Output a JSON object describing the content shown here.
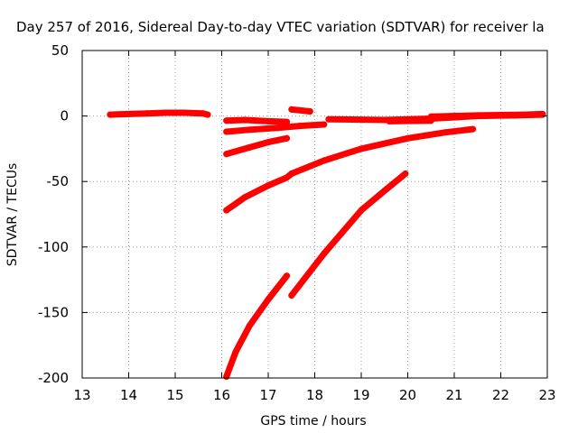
{
  "chart_data": {
    "type": "scatter",
    "title": "Day 257 of 2016, Sidereal Day-to-day VTEC variation (SDTVAR) for receiver la",
    "xlabel": "GPS time / hours",
    "ylabel": "SDTVAR / TECUs",
    "xlim": [
      13,
      23
    ],
    "ylim": [
      -200,
      50
    ],
    "xticks": [
      13,
      14,
      15,
      16,
      17,
      18,
      19,
      20,
      21,
      22,
      23
    ],
    "yticks": [
      50,
      0,
      -50,
      -100,
      -150,
      -200
    ],
    "grid": true,
    "marker_color": "#ff0000",
    "series": [
      {
        "x": [
          13.6,
          14.0,
          14.4,
          14.8,
          15.2,
          15.6,
          15.7
        ],
        "y": [
          1.0,
          1.5,
          2.0,
          2.5,
          2.5,
          2.0,
          1.0
        ]
      },
      {
        "x": [
          16.1,
          16.5,
          17.0,
          17.4
        ],
        "y": [
          -3.5,
          -3.0,
          -4.0,
          -4.5
        ]
      },
      {
        "x": [
          16.1,
          16.6,
          17.2,
          17.7,
          18.2
        ],
        "y": [
          -12.0,
          -10.5,
          -9.0,
          -7.5,
          -6.5
        ]
      },
      {
        "x": [
          16.1,
          16.6,
          17.0,
          17.4
        ],
        "y": [
          -29.0,
          -24.0,
          -20.0,
          -17.0
        ]
      },
      {
        "x": [
          16.1,
          16.5,
          17.0,
          17.4,
          17.5
        ],
        "y": [
          -72.0,
          -62.0,
          -53.0,
          -47.0,
          -44.0
        ]
      },
      {
        "x": [
          16.1,
          16.3,
          16.6,
          17.0,
          17.4
        ],
        "y": [
          -199.0,
          -180.0,
          -160.0,
          -140.0,
          -122.0
        ]
      },
      {
        "x": [
          17.5,
          17.9
        ],
        "y": [
          5.0,
          3.5
        ]
      },
      {
        "x": [
          17.5,
          18.2,
          19.0,
          20.0,
          20.8,
          21.4
        ],
        "y": [
          -44.0,
          -34.0,
          -25.0,
          -17.0,
          -12.5,
          -10.0
        ]
      },
      {
        "x": [
          17.5,
          18.2,
          19.0,
          19.5,
          19.95
        ],
        "y": [
          -137.0,
          -105.0,
          -72.0,
          -57.0,
          -44.0
        ]
      },
      {
        "x": [
          18.3,
          19.5,
          20.5,
          21.5,
          22.3,
          22.9
        ],
        "y": [
          -2.5,
          -3.0,
          -2.0,
          0.0,
          0.5,
          1.0
        ]
      },
      {
        "x": [
          19.6,
          20.5
        ],
        "y": [
          -4.0,
          -3.5
        ]
      },
      {
        "x": [
          20.5,
          21.5,
          22.5,
          22.9
        ],
        "y": [
          -0.5,
          0.5,
          1.0,
          1.5
        ]
      }
    ]
  }
}
